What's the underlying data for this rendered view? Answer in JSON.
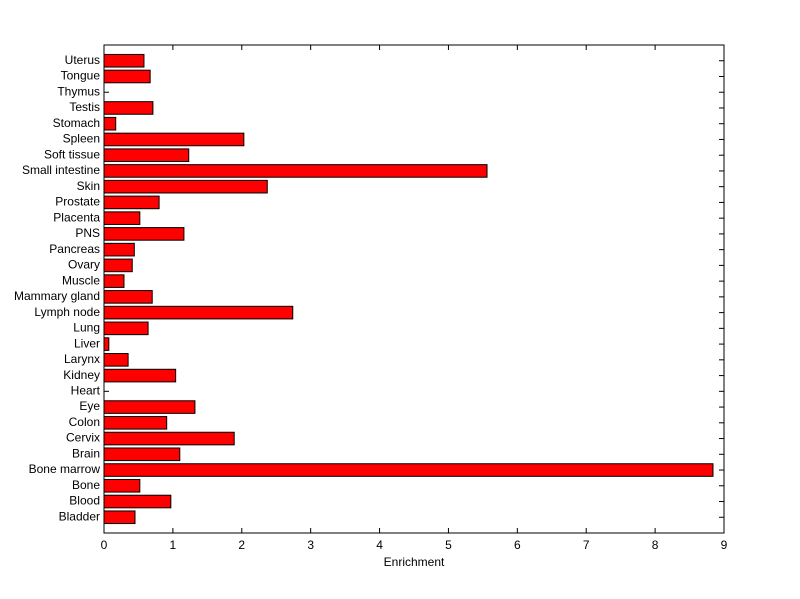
{
  "chart_data": {
    "type": "barh",
    "xlabel": "Enrichment",
    "categories": [
      "Bladder",
      "Blood",
      "Bone",
      "Bone marrow",
      "Brain",
      "Cervix",
      "Colon",
      "Eye",
      "Heart",
      "Kidney",
      "Larynx",
      "Liver",
      "Lung",
      "Lymph node",
      "Mammary gland",
      "Muscle",
      "Ovary",
      "Pancreas",
      "PNS",
      "Placenta",
      "Prostate",
      "Skin",
      "Small intestine",
      "Soft tissue",
      "Spleen",
      "Stomach",
      "Testis",
      "Thymus",
      "Tongue",
      "Uterus"
    ],
    "values": [
      0.45,
      0.97,
      0.52,
      8.84,
      1.1,
      1.89,
      0.91,
      1.32,
      0,
      1.04,
      0.35,
      0.07,
      0.64,
      2.74,
      0.7,
      0.29,
      0.41,
      0.44,
      1.16,
      0.52,
      0.8,
      2.37,
      5.56,
      1.23,
      2.03,
      0.17,
      0.71,
      0,
      0.67,
      0.58
    ],
    "color": "#ff0000",
    "xlim": [
      0,
      9
    ],
    "xticks": [
      0,
      1,
      2,
      3,
      4,
      5,
      6,
      7,
      8,
      9
    ]
  }
}
